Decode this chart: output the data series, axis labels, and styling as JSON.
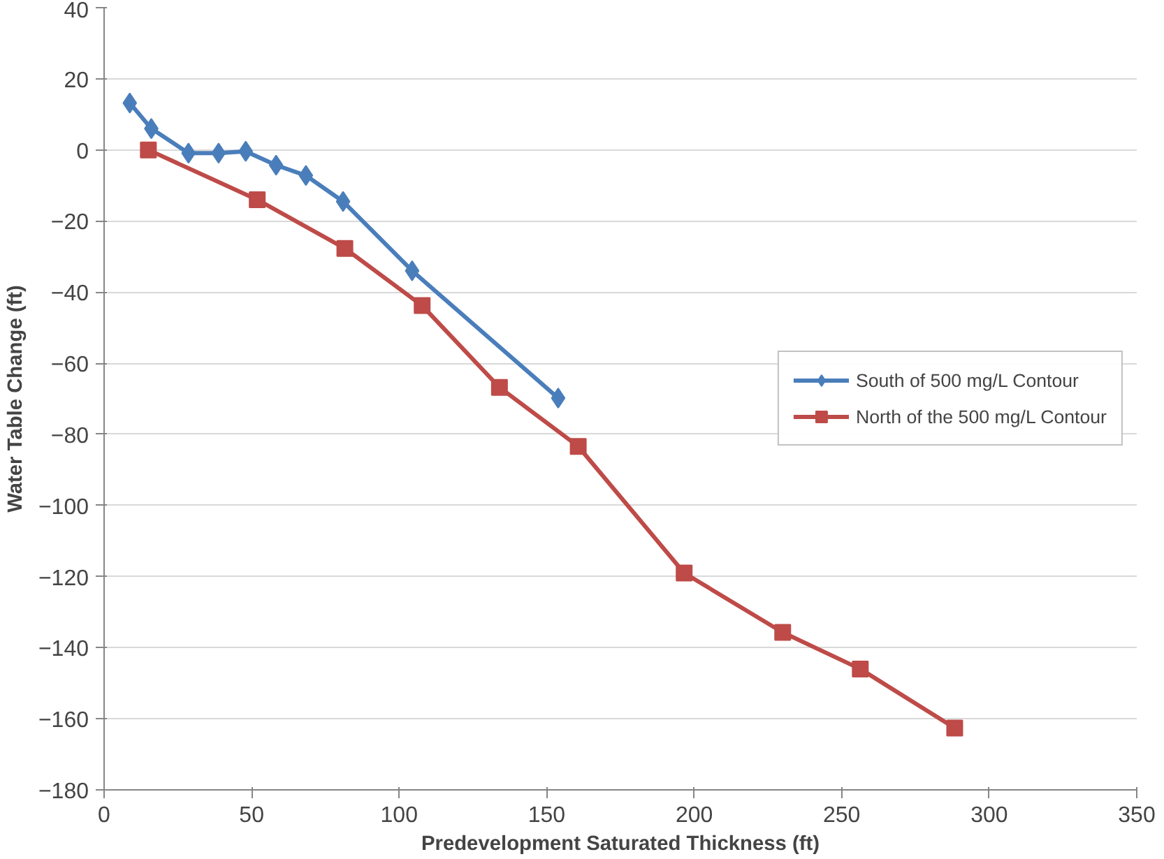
{
  "chart_data": {
    "type": "line",
    "xlabel": "Predevelopment Saturated Thickness (ft)",
    "ylabel": "Water Table Change (ft)",
    "xlim": [
      0,
      350
    ],
    "xticks": [
      0,
      50,
      100,
      150,
      200,
      250,
      300,
      350
    ],
    "ylim": [
      -180,
      40
    ],
    "yticks": [
      -180,
      -160,
      -140,
      -120,
      -100,
      -80,
      -60,
      -40,
      -20,
      0,
      20,
      40
    ],
    "grid": "y",
    "legend": "right",
    "series": [
      {
        "name": "South of 500 mg/L Contour",
        "color": "#4a7ebb",
        "marker": "diamond",
        "x": [
          8.7,
          16,
          28.6,
          38.8,
          48,
          58.3,
          68.4,
          81,
          104.4,
          153.9
        ],
        "values": [
          13.2,
          6,
          -0.9,
          -0.9,
          -0.4,
          -4.3,
          -7.2,
          -14.5,
          -34,
          -69.8
        ]
      },
      {
        "name": "North of the 500 mg/L Contour",
        "color": "#be4b48",
        "marker": "square",
        "x": [
          15,
          51.9,
          81.6,
          107.8,
          134,
          160.7,
          196.6,
          230,
          256.3,
          288.3
        ],
        "values": [
          0,
          -14,
          -27.7,
          -43.8,
          -66.8,
          -83.4,
          -119,
          -135.7,
          -146,
          -162.6
        ]
      }
    ]
  }
}
